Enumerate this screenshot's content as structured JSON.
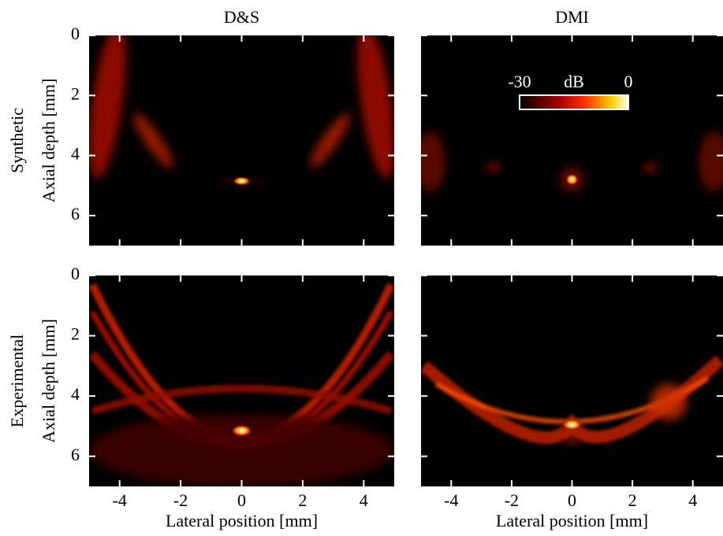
{
  "chart_data": [
    {
      "type": "heatmap",
      "title": "D&S",
      "row_label": "Synthetic",
      "ylabel": "Axial depth [mm]",
      "xlim": [
        -5,
        5
      ],
      "ylim": [
        0,
        7
      ],
      "yticks": [
        0,
        2,
        4,
        6
      ]
    },
    {
      "type": "heatmap",
      "title": "DMI",
      "xlim": [
        -5,
        5
      ],
      "ylim": [
        0,
        7
      ],
      "colorbar": {
        "label": "dB",
        "lim": [
          -30,
          0
        ],
        "ticks": [
          -30,
          0
        ]
      }
    },
    {
      "type": "heatmap",
      "row_label": "Experimental",
      "ylabel": "Axial depth [mm]",
      "xlabel": "Lateral position [mm]",
      "xlim": [
        -5,
        5
      ],
      "ylim": [
        0,
        7
      ],
      "xticks": [
        -4,
        -2,
        0,
        2,
        4
      ],
      "yticks": [
        0,
        2,
        4,
        6
      ]
    },
    {
      "type": "heatmap",
      "xlabel": "Lateral position [mm]",
      "xlim": [
        -5,
        5
      ],
      "ylim": [
        0,
        7
      ],
      "xticks": [
        -4,
        -2,
        0,
        2,
        4
      ]
    }
  ]
}
